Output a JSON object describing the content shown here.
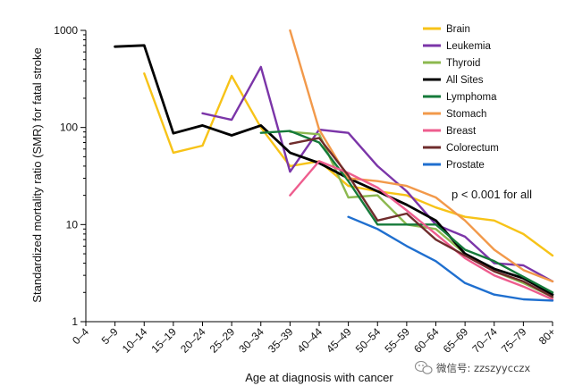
{
  "chart_data": {
    "type": "line",
    "xlabel": "Age at diagnosis with cancer",
    "ylabel": "Standardized mortality ratio (SMR) for fatal stroke",
    "yscale": "log",
    "ylim": [
      1,
      1000
    ],
    "y_ticks": [
      "1",
      "10",
      "100",
      "1000"
    ],
    "categories": [
      "0–4",
      "5–9",
      "10–14",
      "15–19",
      "20–24",
      "25–29",
      "30–34",
      "35–39",
      "40–44",
      "45–49",
      "50–54",
      "55–59",
      "60–64",
      "65–69",
      "70–74",
      "75–79",
      "80+"
    ],
    "grid": false,
    "legend_position": "top-right",
    "annotation": "p < 0.001 for all",
    "series": [
      {
        "name": "Brain",
        "color": "#f7c318",
        "values": [
          null,
          null,
          360,
          55,
          65,
          340,
          100,
          40,
          45,
          25,
          22,
          20,
          15,
          12,
          11,
          8,
          4.8
        ]
      },
      {
        "name": "Leukemia",
        "color": "#7b35a8",
        "values": [
          null,
          null,
          null,
          null,
          140,
          120,
          420,
          35,
          95,
          88,
          40,
          22,
          10,
          7.5,
          4,
          3.8,
          2.6
        ]
      },
      {
        "name": "Thyroid",
        "color": "#8cb84f",
        "values": [
          null,
          null,
          null,
          null,
          null,
          null,
          null,
          90,
          85,
          19,
          20,
          10,
          9,
          5,
          3.3,
          2.5,
          1.8
        ]
      },
      {
        "name": "All Sites",
        "color": "#000000",
        "values": [
          null,
          680,
          700,
          87,
          105,
          83,
          105,
          55,
          43,
          30,
          22,
          16,
          11,
          5,
          3.5,
          2.8,
          1.9
        ]
      },
      {
        "name": "Lymphoma",
        "color": "#157a3a",
        "values": [
          null,
          null,
          null,
          null,
          null,
          null,
          88,
          92,
          70,
          28,
          10,
          10,
          10,
          5.5,
          4.2,
          2.9,
          2.0
        ]
      },
      {
        "name": "Stomach",
        "color": "#f2994a",
        "values": [
          null,
          null,
          null,
          null,
          null,
          null,
          null,
          1000,
          95,
          30,
          28,
          25,
          19,
          11,
          5.5,
          3.4,
          2.6
        ]
      },
      {
        "name": "Breast",
        "color": "#ee5d8e",
        "values": [
          null,
          null,
          null,
          null,
          null,
          null,
          null,
          20,
          45,
          34,
          24,
          14,
          8,
          4.5,
          3.0,
          2.3,
          1.7
        ]
      },
      {
        "name": "Colorectum",
        "color": "#6f2c2c",
        "values": [
          null,
          null,
          null,
          null,
          null,
          null,
          null,
          68,
          78,
          32,
          11,
          13,
          7,
          4.8,
          3.3,
          2.6,
          1.8
        ]
      },
      {
        "name": "Prostate",
        "color": "#1f6fcf",
        "values": [
          null,
          null,
          null,
          null,
          null,
          null,
          null,
          null,
          null,
          12,
          9,
          6,
          4.2,
          2.5,
          1.9,
          1.7,
          1.65
        ]
      }
    ]
  },
  "watermark": {
    "text": "微信号: zzszyycczx",
    "icon": "wechat-icon"
  }
}
